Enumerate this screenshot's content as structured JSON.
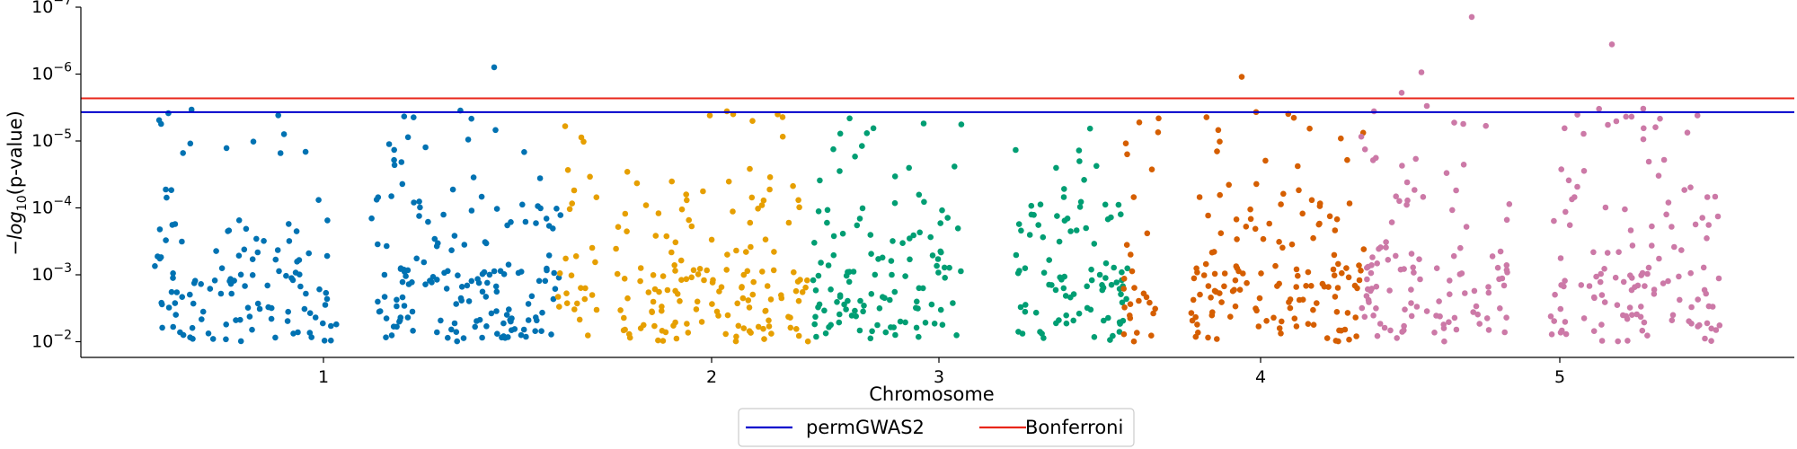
{
  "chart_data": {
    "type": "scatter",
    "title": "",
    "xlabel": "Chromosome",
    "ylabel": "−log10(p-value)",
    "y_scale": "log",
    "y_inverted": true,
    "ylim": [
      0.016,
      1.4e-07
    ],
    "x_tick_labels": [
      "1",
      "2",
      "3",
      "4",
      "5"
    ],
    "y_tick_labels": [
      "10^-2",
      "10^-3",
      "10^-4",
      "10^-5",
      "10^-6",
      "10^-7"
    ],
    "thresholds": [
      {
        "name": "permGWAS2",
        "value": 3.7e-06,
        "color": "#0000cc"
      },
      {
        "name": "Bonferroni",
        "value": 2.3e-06,
        "color": "#e8261a"
      }
    ],
    "legend_position": "bottom-center",
    "chromosome_colors": [
      "#0072b2",
      "#e69f00",
      "#009e73",
      "#d55e00",
      "#cc79a7"
    ],
    "notable_points": [
      {
        "chromosome": "1",
        "p": 7.9e-07
      },
      {
        "chromosome": "4",
        "p": 1.1e-06
      },
      {
        "chromosome": "4",
        "p": 3.7e-06
      },
      {
        "chromosome": "4",
        "p": 4.5e-06
      },
      {
        "chromosome": "5",
        "p": 1.4e-07
      },
      {
        "chromosome": "5",
        "p": 3.6e-07
      },
      {
        "chromosome": "5",
        "p": 9.4e-07
      },
      {
        "chromosome": "5",
        "p": 1.9e-06
      },
      {
        "chromosome": "5",
        "p": 3e-06
      },
      {
        "chromosome": "5",
        "p": 7.5e-06
      },
      {
        "chromosome": "2",
        "p": 3.6e-06
      },
      {
        "chromosome": "2",
        "p": 4.4e-06
      }
    ]
  }
}
